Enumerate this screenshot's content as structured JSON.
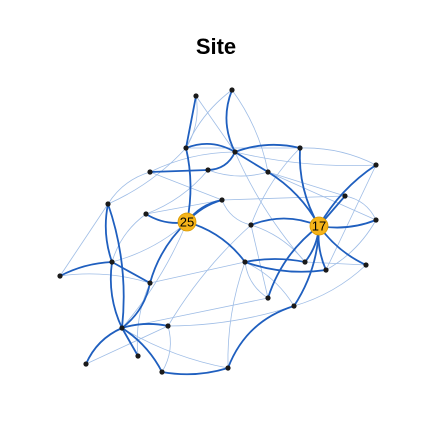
{
  "title": "Site",
  "colors": {
    "edge_strong": "#1f5fbf",
    "edge_weak": "#9fbde6",
    "node": "#1a1a1a",
    "hub_fill": "#f5b41a",
    "hub_stroke": "#d99a00"
  },
  "hubs": [
    {
      "id": "h25",
      "label": "25"
    },
    {
      "id": "h17",
      "label": "17"
    }
  ]
}
